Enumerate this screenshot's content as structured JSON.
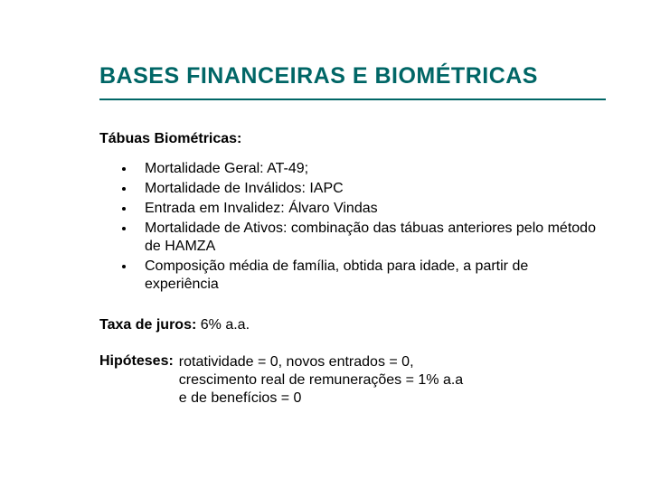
{
  "colors": {
    "title": "#006666",
    "rule": "#006666",
    "text": "#000000",
    "background": "#ffffff"
  },
  "title": "BASES FINANCEIRAS E BIOMÉTRICAS",
  "section_heading": "Tábuas Biométricas:",
  "bullets": [
    "Mortalidade Geral: AT-49;",
    "Mortalidade de Inválidos: IAPC",
    "Entrada em Invalidez: Álvaro Vindas",
    "Mortalidade de Ativos: combinação das tábuas anteriores pelo método de HAMZA",
    "Composição média de família, obtida para idade, a partir de experiência"
  ],
  "rate": {
    "label": "Taxa de juros:",
    "value": "6% a.a."
  },
  "hypotheses": {
    "label": "Hipóteses:",
    "lines": [
      "rotatividade = 0, novos entrados = 0,",
      "crescimento real de remunerações = 1% a.a",
      "e de benefícios = 0"
    ]
  }
}
